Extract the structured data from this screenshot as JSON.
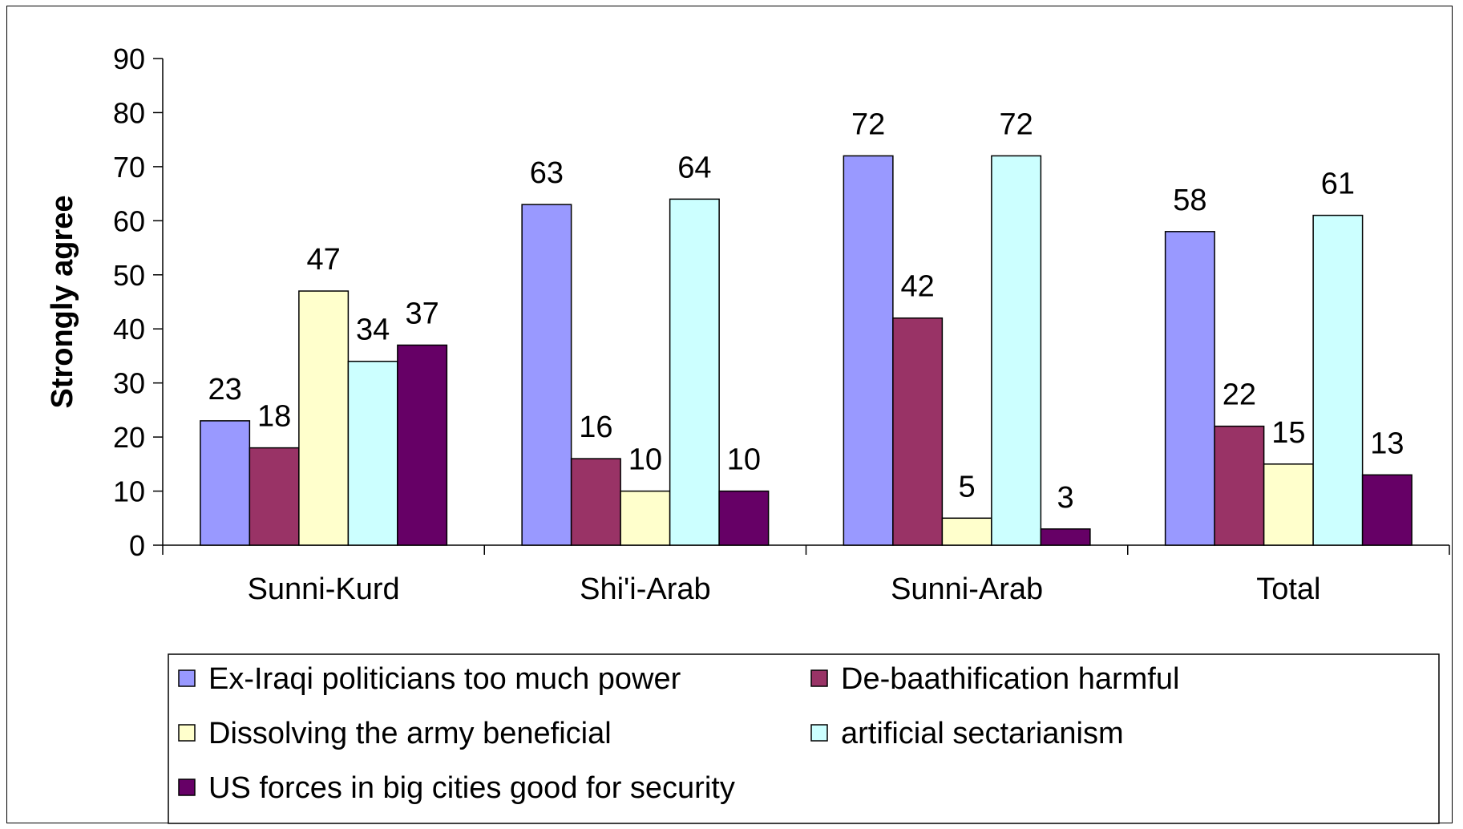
{
  "chart_data": {
    "type": "bar",
    "title": "",
    "xlabel": "",
    "ylabel": "Strongly agree",
    "ylim": [
      0,
      90
    ],
    "yticks": [
      0,
      10,
      20,
      30,
      40,
      50,
      60,
      70,
      80,
      90
    ],
    "grid": false,
    "legend_position": "bottom",
    "categories": [
      "Sunni-Kurd",
      "Shi'i-Arab",
      "Sunni-Arab",
      "Total"
    ],
    "series": [
      {
        "name": "Ex-Iraqi politicians too much power",
        "color": "#9999ff",
        "values": [
          23,
          63,
          72,
          58
        ],
        "labels": [
          "23",
          "63",
          "72",
          "58"
        ]
      },
      {
        "name": "De-baathification harmful",
        "color": "#993366",
        "values": [
          18,
          16,
          42,
          22
        ],
        "labels": [
          "18",
          "16",
          "42",
          "22"
        ]
      },
      {
        "name": "Dissolving the army beneficial",
        "color": "#ffffcc",
        "values": [
          47,
          10,
          5,
          15
        ],
        "labels": [
          "47",
          "10",
          "5",
          "15"
        ]
      },
      {
        "name": "artificial sectarianism",
        "color": "#ccffff",
        "values": [
          34,
          64,
          72,
          61
        ],
        "labels": [
          "34",
          "64",
          "72",
          "61"
        ]
      },
      {
        "name": "US forces in big cities good for security",
        "color": "#660066",
        "values": [
          37,
          10,
          3,
          13
        ],
        "labels": [
          "37",
          "10",
          "3",
          "13"
        ]
      }
    ],
    "visible_label_map": [
      [
        true,
        true,
        true,
        true,
        true
      ],
      [
        true,
        true,
        true,
        true,
        true
      ],
      [
        true,
        true,
        true,
        true,
        true
      ],
      [
        true,
        true,
        true,
        true,
        true
      ]
    ]
  }
}
